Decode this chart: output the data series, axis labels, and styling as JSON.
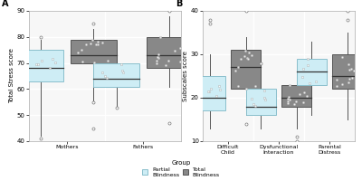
{
  "panel_A": {
    "title": "A",
    "ylabel": "Total Stress score",
    "xlabel_groups": [
      "Mothers",
      "Fathers"
    ],
    "ylim": [
      40,
      90
    ],
    "yticks": [
      40,
      50,
      60,
      70,
      80,
      90
    ],
    "partial_blindness": {
      "Mothers": {
        "q1": 63,
        "median": 68,
        "q3": 75,
        "whisker_low": 42,
        "whisker_high": 79,
        "outliers": [
          41,
          80
        ]
      },
      "Fathers": {
        "q1": 61,
        "median": 64,
        "q3": 70,
        "whisker_low": 53,
        "whisker_high": 78,
        "outliers": [
          53
        ]
      }
    },
    "total_blindness": {
      "Mothers": {
        "q1": 70,
        "median": 73,
        "q3": 79,
        "whisker_low": 55,
        "whisker_high": 83,
        "outliers": [
          45,
          55,
          85
        ]
      },
      "Fathers": {
        "q1": 68,
        "median": 73,
        "q3": 80,
        "whisker_low": 61,
        "whisker_high": 88,
        "outliers": [
          47,
          90
        ]
      }
    }
  },
  "panel_B": {
    "title": "B",
    "ylabel": "Subscales score",
    "xlabel_groups": [
      "Difficult\nChild",
      "Dysfunctional\nInteraction",
      "Parental\nDistress"
    ],
    "ylim": [
      10,
      40
    ],
    "yticks": [
      10,
      20,
      30,
      40
    ],
    "partial_blindness": {
      "Difficult\nChild": {
        "q1": 17,
        "median": 20,
        "q3": 25,
        "whisker_low": 13,
        "whisker_high": 30,
        "outliers": [
          38,
          37
        ]
      },
      "Dysfunctional\nInteraction": {
        "q1": 16,
        "median": 18,
        "q3": 22,
        "whisker_low": 13,
        "whisker_high": 27,
        "outliers": [
          28
        ]
      },
      "Parental\nDistress": {
        "q1": 23,
        "median": 26,
        "q3": 29,
        "whisker_low": 16,
        "whisker_high": 33,
        "outliers": []
      }
    },
    "total_blindness": {
      "Difficult\nChild": {
        "q1": 22,
        "median": 27,
        "q3": 31,
        "whisker_low": 16,
        "whisker_high": 34,
        "outliers": [
          14,
          40,
          42
        ]
      },
      "Dysfunctional\nInteraction": {
        "q1": 18,
        "median": 20,
        "q3": 23,
        "whisker_low": 13,
        "whisker_high": 28,
        "outliers": [
          10,
          11
        ]
      },
      "Parental\nDistress": {
        "q1": 22,
        "median": 25,
        "q3": 30,
        "whisker_low": 15,
        "whisker_high": 35,
        "outliers": [
          38,
          40
        ]
      }
    }
  },
  "color_partial": "#ceedf5",
  "color_partial_edge": "#8abfcc",
  "color_total": "#888888",
  "color_total_edge": "#555555",
  "bg_color": "#f7f7f7",
  "grid_color": "#ffffff",
  "fig_bg": "#ffffff",
  "legend_label_partial": "Partial\nBlindness",
  "legend_label_total": "Total\nBlindness",
  "legend_title": "Group"
}
